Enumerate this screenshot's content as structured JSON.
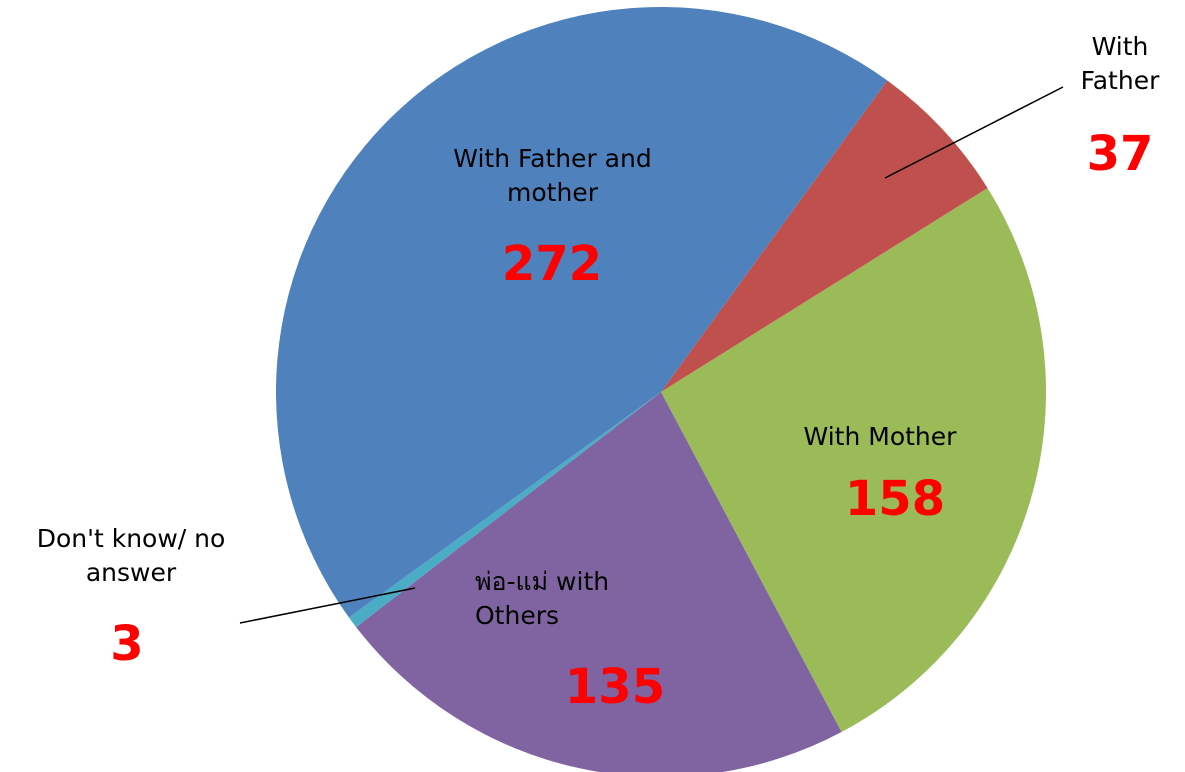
{
  "chart_data": {
    "type": "pie",
    "categories": [
      "With Father",
      "With Mother",
      "พ่อ-แม่ with Others",
      "Don't know/ no answer",
      "With Father and mother"
    ],
    "values": [
      37,
      158,
      135,
      3,
      272
    ],
    "colors": [
      "#c0504d",
      "#9bbb59",
      "#8064a2",
      "#4bacc6",
      "#4f81bd"
    ]
  }
}
